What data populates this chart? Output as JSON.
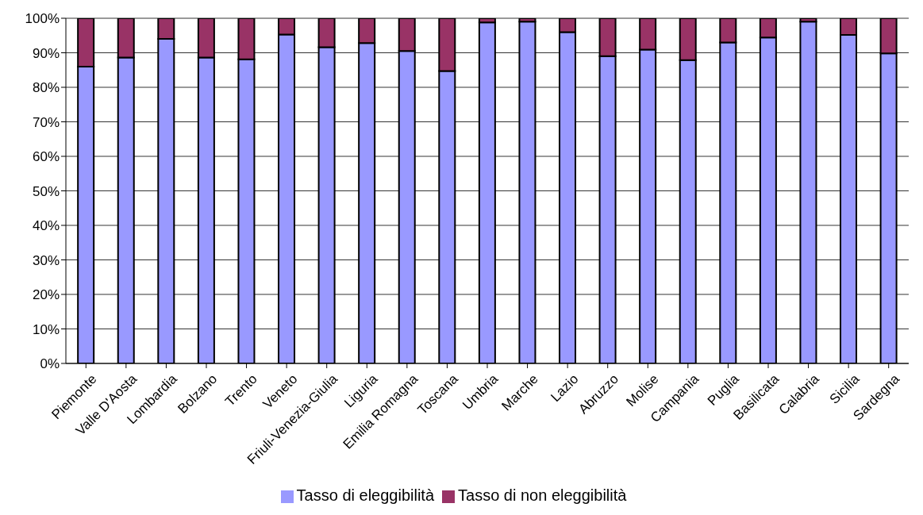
{
  "chart_data": {
    "type": "bar",
    "stacked": true,
    "categories": [
      "Piemonte",
      "Valle D'Aosta",
      "Lombardia",
      "Bolzano",
      "Trento",
      "Veneto",
      "Friuli-Venezia-Giulia",
      "Liguria",
      "Emilia Romagna",
      "Toscana",
      "Umbria",
      "Marche",
      "Lazio",
      "Abruzzo",
      "Molise",
      "Campania",
      "Puglia",
      "Basilicata",
      "Calabria",
      "Sicilia",
      "Sardegna"
    ],
    "series": [
      {
        "name": "Tasso di eleggibilità",
        "color": "#9999ff",
        "values": [
          86,
          88.6,
          94,
          88.6,
          88.1,
          95.3,
          91.6,
          92.8,
          90.5,
          84.7,
          98.8,
          99,
          96,
          89,
          90.9,
          87.9,
          93,
          94.4,
          99,
          95.2,
          89.8
        ]
      },
      {
        "name": "Tasso di non eleggibilità",
        "color": "#993366",
        "values": [
          14,
          11.4,
          6,
          11.4,
          11.9,
          4.7,
          8.4,
          7.2,
          9.5,
          15.3,
          1.2,
          1,
          4,
          11,
          9.1,
          12.1,
          7,
          5.6,
          1,
          4.8,
          10.2
        ]
      }
    ],
    "ylim": [
      0,
      100
    ],
    "yticks": [
      {
        "value": 0,
        "label": "0%"
      },
      {
        "value": 10,
        "label": "10%"
      },
      {
        "value": 20,
        "label": "20%"
      },
      {
        "value": 30,
        "label": "30%"
      },
      {
        "value": 40,
        "label": "40%"
      },
      {
        "value": 50,
        "label": "50%"
      },
      {
        "value": 60,
        "label": "60%"
      },
      {
        "value": 70,
        "label": "70%"
      },
      {
        "value": 80,
        "label": "80%"
      },
      {
        "value": 90,
        "label": "90%"
      },
      {
        "value": 100,
        "label": "100%"
      }
    ],
    "grid": "y",
    "legend": "bottom"
  }
}
